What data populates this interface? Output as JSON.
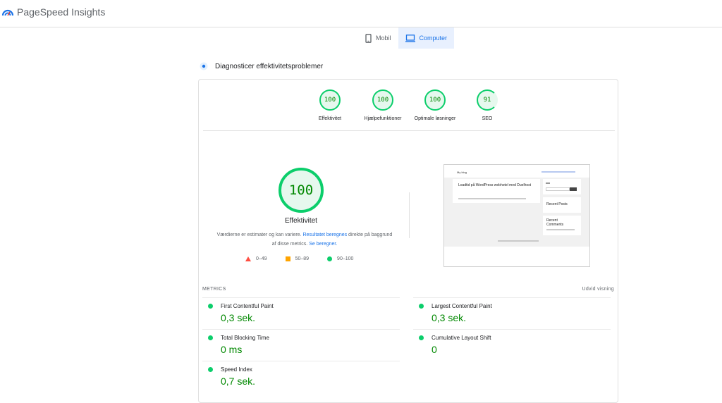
{
  "app": {
    "title": "PageSpeed Insights"
  },
  "tabs": [
    {
      "label": "Mobil",
      "icon": "phone-icon",
      "active": false
    },
    {
      "label": "Computer",
      "icon": "desktop-icon",
      "active": true
    }
  ],
  "section": {
    "title": "Diagnosticer effektivitetsproblemer"
  },
  "scores": [
    {
      "value": "100",
      "label": "Effektivitet"
    },
    {
      "value": "100",
      "label": "Hjælpefunktioner"
    },
    {
      "value": "100",
      "label": "Optimale løsninger"
    },
    {
      "value": "91",
      "label": "SEO"
    }
  ],
  "performance": {
    "score": "100",
    "label": "Effektivitet",
    "desc_prefix": "Værdierne er estimater og kan variere. ",
    "desc_link1": "Resultatet beregnes",
    "desc_mid": " direkte på baggrund af disse metrics. ",
    "desc_link2": "Se beregner."
  },
  "legend": [
    {
      "range": "0–49",
      "color": "#ff4e42"
    },
    {
      "range": "50–89",
      "color": "#ffa400"
    },
    {
      "range": "90–100",
      "color": "#0cce6b"
    }
  ],
  "screenshot": {
    "site_title": "My blog",
    "post_title": "Loadtid på WordPress webhotel med Duelhost",
    "recent_posts": "Recent Posts",
    "recent_comments": "Recent Comments"
  },
  "metrics": {
    "heading": "METRICS",
    "expand_label": "Udvid visning",
    "items": [
      {
        "name": "First Contentful Paint",
        "value": "0,3 sek."
      },
      {
        "name": "Largest Contentful Paint",
        "value": "0,3 sek."
      },
      {
        "name": "Total Blocking Time",
        "value": "0 ms"
      },
      {
        "name": "Cumulative Layout Shift",
        "value": "0"
      },
      {
        "name": "Speed Index",
        "value": "0,7 sek."
      }
    ]
  },
  "colors": {
    "pass": "#0cce6b",
    "pass_text": "#008800",
    "accent": "#1a73e8"
  }
}
